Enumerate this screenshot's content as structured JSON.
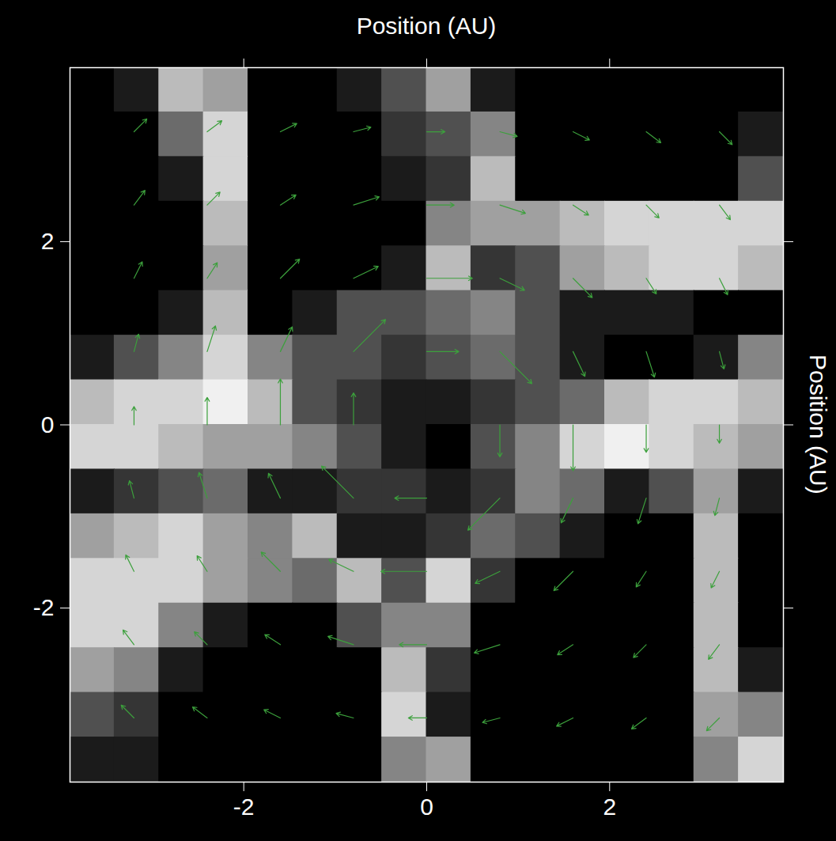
{
  "chart_data": {
    "type": "heatmap",
    "x_label": "Position (AU)",
    "y_label": "Position (AU)",
    "xlim": [
      -3.9,
      3.9
    ],
    "ylim": [
      -3.9,
      3.9
    ],
    "xticks": [
      -2,
      0,
      2
    ],
    "yticks": [
      -2,
      0,
      2
    ],
    "x_edges": [
      -3.9,
      -3.4125,
      -2.925,
      -2.4375,
      -1.95,
      -1.4625,
      -0.975,
      -0.4875,
      0,
      0.4875,
      0.975,
      1.4625,
      1.95,
      2.4375,
      2.925,
      3.4125,
      3.9
    ],
    "y_edges": [
      3.9,
      3.4125,
      2.925,
      2.4375,
      1.95,
      1.4625,
      0.975,
      0.4875,
      0,
      -0.4875,
      -0.975,
      -1.4625,
      -1.95,
      -2.4375,
      -2.925,
      -3.4125,
      -3.9
    ],
    "density": [
      [
        0.05,
        0.1,
        0.4,
        0.35,
        0.05,
        0.05,
        0.1,
        0.2,
        0.35,
        0.1,
        0.05,
        0.05,
        0.05,
        0.05,
        0.05,
        0.05
      ],
      [
        0.05,
        0.05,
        0.25,
        0.45,
        0.05,
        0.05,
        0.05,
        0.15,
        0.2,
        0.3,
        0.05,
        0.05,
        0.05,
        0.05,
        0.05,
        0.1
      ],
      [
        0.05,
        0.05,
        0.1,
        0.45,
        0.05,
        0.05,
        0.05,
        0.1,
        0.15,
        0.4,
        0.05,
        0.05,
        0.05,
        0.05,
        0.05,
        0.2
      ],
      [
        0.05,
        0.05,
        0.05,
        0.4,
        0.05,
        0.05,
        0.05,
        0.05,
        0.3,
        0.35,
        0.35,
        0.4,
        0.45,
        0.45,
        0.45,
        0.45
      ],
      [
        0.05,
        0.05,
        0.05,
        0.35,
        0.05,
        0.05,
        0.05,
        0.1,
        0.4,
        0.15,
        0.2,
        0.35,
        0.4,
        0.45,
        0.45,
        0.4
      ],
      [
        0.05,
        0.05,
        0.1,
        0.4,
        0.05,
        0.1,
        0.2,
        0.2,
        0.25,
        0.3,
        0.2,
        0.1,
        0.1,
        0.1,
        0.05,
        0.05
      ],
      [
        0.1,
        0.2,
        0.3,
        0.45,
        0.3,
        0.2,
        0.2,
        0.15,
        0.2,
        0.25,
        0.2,
        0.1,
        0.05,
        0.05,
        0.1,
        0.3
      ],
      [
        0.4,
        0.45,
        0.45,
        0.5,
        0.4,
        0.2,
        0.15,
        0.1,
        0.1,
        0.15,
        0.2,
        0.25,
        0.4,
        0.45,
        0.45,
        0.4
      ],
      [
        0.45,
        0.45,
        0.4,
        0.35,
        0.35,
        0.3,
        0.2,
        0.1,
        0.05,
        0.2,
        0.3,
        0.45,
        0.5,
        0.45,
        0.4,
        0.35
      ],
      [
        0.1,
        0.15,
        0.2,
        0.25,
        0.1,
        0.1,
        0.15,
        0.15,
        0.1,
        0.15,
        0.3,
        0.25,
        0.1,
        0.2,
        0.35,
        0.1
      ],
      [
        0.35,
        0.4,
        0.45,
        0.35,
        0.3,
        0.4,
        0.1,
        0.1,
        0.15,
        0.25,
        0.2,
        0.1,
        0.05,
        0.05,
        0.4,
        0.05
      ],
      [
        0.45,
        0.45,
        0.45,
        0.35,
        0.3,
        0.25,
        0.4,
        0.2,
        0.45,
        0.15,
        0.05,
        0.05,
        0.05,
        0.05,
        0.4,
        0.05
      ],
      [
        0.45,
        0.45,
        0.3,
        0.1,
        0.05,
        0.05,
        0.2,
        0.3,
        0.3,
        0.05,
        0.05,
        0.05,
        0.05,
        0.05,
        0.4,
        0.05
      ],
      [
        0.35,
        0.3,
        0.1,
        0.05,
        0.05,
        0.05,
        0.05,
        0.4,
        0.15,
        0.05,
        0.05,
        0.05,
        0.05,
        0.05,
        0.4,
        0.1
      ],
      [
        0.2,
        0.15,
        0.05,
        0.05,
        0.05,
        0.05,
        0.05,
        0.45,
        0.1,
        0.05,
        0.05,
        0.05,
        0.05,
        0.05,
        0.35,
        0.3
      ],
      [
        0.1,
        0.1,
        0.05,
        0.05,
        0.05,
        0.05,
        0.05,
        0.3,
        0.35,
        0.05,
        0.05,
        0.05,
        0.05,
        0.05,
        0.3,
        0.45
      ]
    ],
    "vectors": {
      "color": "#3ca03c",
      "x": [
        -3.2,
        -2.4,
        -1.6,
        -0.8,
        0,
        0.8,
        1.6,
        2.4,
        3.2
      ],
      "y": [
        3.2,
        2.4,
        1.6,
        0.8,
        0,
        -0.8,
        -1.6,
        -2.4,
        -3.2
      ],
      "u": [
        [
          0.14,
          0.16,
          0.18,
          0.19,
          0.2,
          0.19,
          0.18,
          0.16,
          0.14
        ],
        [
          0.12,
          0.14,
          0.17,
          0.28,
          0.3,
          0.28,
          0.17,
          0.14,
          0.12
        ],
        [
          0.09,
          0.11,
          0.21,
          0.27,
          0.5,
          0.27,
          0.21,
          0.11,
          0.09
        ],
        [
          0.05,
          0.09,
          0.13,
          0.35,
          0.35,
          0.35,
          0.13,
          0.09,
          0.05
        ],
        [
          0,
          0,
          0,
          0,
          0,
          0,
          0,
          0,
          0
        ],
        [
          -0.05,
          -0.09,
          -0.13,
          -0.35,
          -0.35,
          -0.35,
          -0.13,
          -0.09,
          -0.05
        ],
        [
          -0.09,
          -0.11,
          -0.21,
          -0.27,
          -0.5,
          -0.27,
          -0.21,
          -0.11,
          -0.09
        ],
        [
          -0.12,
          -0.14,
          -0.17,
          -0.28,
          -0.3,
          -0.28,
          -0.17,
          -0.14,
          -0.12
        ],
        [
          -0.14,
          -0.16,
          -0.18,
          -0.19,
          -0.2,
          -0.19,
          -0.18,
          -0.16,
          -0.14
        ]
      ],
      "v": [
        [
          0.14,
          0.12,
          0.09,
          0.05,
          0,
          -0.05,
          -0.09,
          -0.12,
          -0.14
        ],
        [
          0.16,
          0.14,
          0.11,
          0.09,
          0,
          -0.09,
          -0.11,
          -0.14,
          -0.16
        ],
        [
          0.18,
          0.17,
          0.21,
          0.13,
          0,
          -0.13,
          -0.21,
          -0.17,
          -0.18
        ],
        [
          0.19,
          0.28,
          0.27,
          0.35,
          0,
          -0.35,
          -0.27,
          -0.28,
          -0.19
        ],
        [
          0.2,
          0.3,
          0.5,
          0.35,
          0,
          -0.35,
          -0.5,
          -0.3,
          -0.2
        ],
        [
          0.19,
          0.28,
          0.27,
          0.35,
          0,
          -0.35,
          -0.27,
          -0.28,
          -0.19
        ],
        [
          0.18,
          0.17,
          0.21,
          0.13,
          0,
          -0.13,
          -0.21,
          -0.17,
          -0.18
        ],
        [
          0.16,
          0.14,
          0.11,
          0.09,
          0,
          -0.09,
          -0.11,
          -0.14,
          -0.16
        ],
        [
          0.14,
          0.12,
          0.09,
          0.05,
          0,
          -0.05,
          -0.09,
          -0.12,
          -0.14
        ]
      ]
    }
  }
}
